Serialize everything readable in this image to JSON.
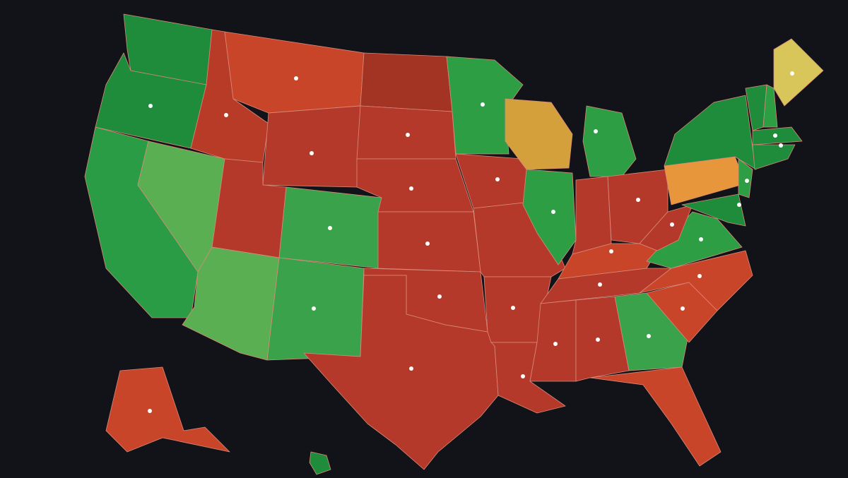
{
  "map": {
    "background": "#111318",
    "border_color": "#d98a7a",
    "regions": [
      {
        "color": "#1e8c3a"
      },
      {
        "color": "#1e8c3a"
      },
      {
        "color": "#2a9c45"
      },
      {
        "color": "#5aaf52"
      },
      {
        "color": "#b83b28"
      },
      {
        "color": "#c9452a"
      },
      {
        "color": "#b5392a"
      },
      {
        "color": "#b5392a"
      },
      {
        "color": "#5aaf52"
      },
      {
        "color": "#3aa24a"
      },
      {
        "color": "#3aa24a"
      },
      {
        "color": "#a33322"
      },
      {
        "color": "#b5392a"
      },
      {
        "color": "#b5392a"
      },
      {
        "color": "#b5392a"
      },
      {
        "color": "#b5392a"
      },
      {
        "color": "#b5392a"
      },
      {
        "color": "#2e9e45"
      },
      {
        "color": "#b5392a"
      },
      {
        "color": "#b5392a"
      },
      {
        "color": "#b5392a"
      },
      {
        "color": "#b5392a"
      },
      {
        "color": "#d4a03c"
      },
      {
        "color": "#2e9e45"
      },
      {
        "color": "#2e9e45"
      },
      {
        "color": "#b5392a"
      },
      {
        "color": "#b5392a"
      },
      {
        "color": "#c9452a"
      },
      {
        "color": "#b5392a"
      },
      {
        "color": "#b5392a"
      },
      {
        "color": "#b5392a"
      },
      {
        "color": "#3aa24a"
      },
      {
        "color": "#c9452a"
      },
      {
        "color": "#c9452a"
      },
      {
        "color": "#c9452a"
      },
      {
        "color": "#2e9e45"
      },
      {
        "color": "#b5392a"
      },
      {
        "color": "#e8963b"
      },
      {
        "color": "#1e8c3a"
      },
      {
        "color": "#2e9e45"
      },
      {
        "color": "#1e8c3a"
      },
      {
        "color": "#1e8c3a"
      },
      {
        "color": "#2e9e45"
      },
      {
        "color": "#1e8c3a"
      },
      {
        "color": "#1e8c3a"
      },
      {
        "color": "#d9c65a"
      },
      {
        "color": "#c9452a"
      },
      {
        "color": "#1e8c3a"
      }
    ]
  }
}
